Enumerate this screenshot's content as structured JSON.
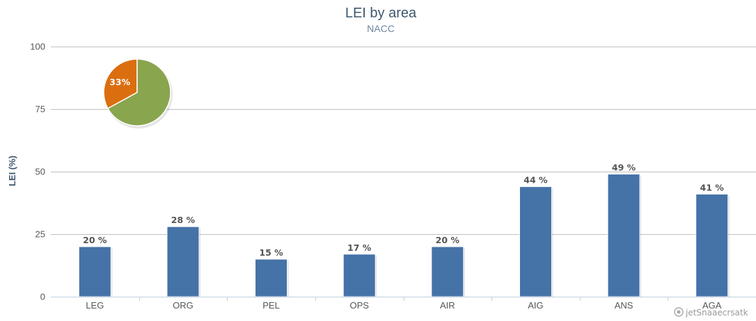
{
  "chart_data": [
    {
      "type": "bar",
      "title": "LEI by area",
      "subtitle": "NACC",
      "ylabel": "LEI (%)",
      "xlabel": "",
      "ylim": [
        0,
        100
      ],
      "yticks": [
        0,
        25,
        50,
        75,
        100
      ],
      "grid": true,
      "categories": [
        "LEG",
        "ORG",
        "PEL",
        "OPS",
        "AIR",
        "AIG",
        "ANS",
        "AGA"
      ],
      "values": [
        20,
        28,
        15,
        17,
        20,
        44,
        49,
        41
      ],
      "data_label_suffix": " %",
      "color": "#4572a7"
    },
    {
      "type": "pie",
      "slices": [
        {
          "value": 33,
          "label": "33%",
          "color": "#db6e0f"
        },
        {
          "value": 67,
          "label": "",
          "color": "#89a54e"
        }
      ]
    }
  ],
  "credits": "jetSnaaecrsatk"
}
